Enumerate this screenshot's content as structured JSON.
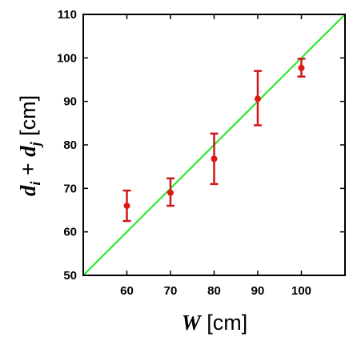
{
  "chart_data": {
    "type": "scatter",
    "title": "",
    "xlabel": {
      "symbol": "W",
      "unit": " [cm]"
    },
    "ylabel": {
      "parts": [
        {
          "text": "d",
          "italic": true
        },
        {
          "text": "i",
          "italic": true,
          "sub": true
        },
        {
          "text": " + ",
          "italic": false
        },
        {
          "text": "d",
          "italic": true
        },
        {
          "text": "j",
          "italic": true,
          "sub": true
        },
        {
          "text": " [cm]",
          "italic": false
        }
      ]
    },
    "xlim": [
      50,
      110
    ],
    "ylim": [
      50,
      110
    ],
    "xticks": [
      60,
      70,
      80,
      90,
      100
    ],
    "yticks": [
      50,
      60,
      70,
      80,
      90,
      100,
      110
    ],
    "grid": false,
    "points": [
      {
        "x": 60,
        "y": 66.0,
        "err_low": 62.5,
        "err_high": 69.5
      },
      {
        "x": 70,
        "y": 69.0,
        "err_low": 66.0,
        "err_high": 72.3
      },
      {
        "x": 80,
        "y": 76.8,
        "err_low": 71.0,
        "err_high": 82.6
      },
      {
        "x": 90,
        "y": 90.6,
        "err_low": 84.5,
        "err_high": 97.0
      },
      {
        "x": 100,
        "y": 97.7,
        "err_low": 95.7,
        "err_high": 99.8
      }
    ],
    "reference_line": {
      "from": [
        50,
        50
      ],
      "to": [
        110,
        110
      ],
      "color": "#1ee81e"
    },
    "point_color": "#e01818",
    "error_bar_color": "#d01818"
  }
}
